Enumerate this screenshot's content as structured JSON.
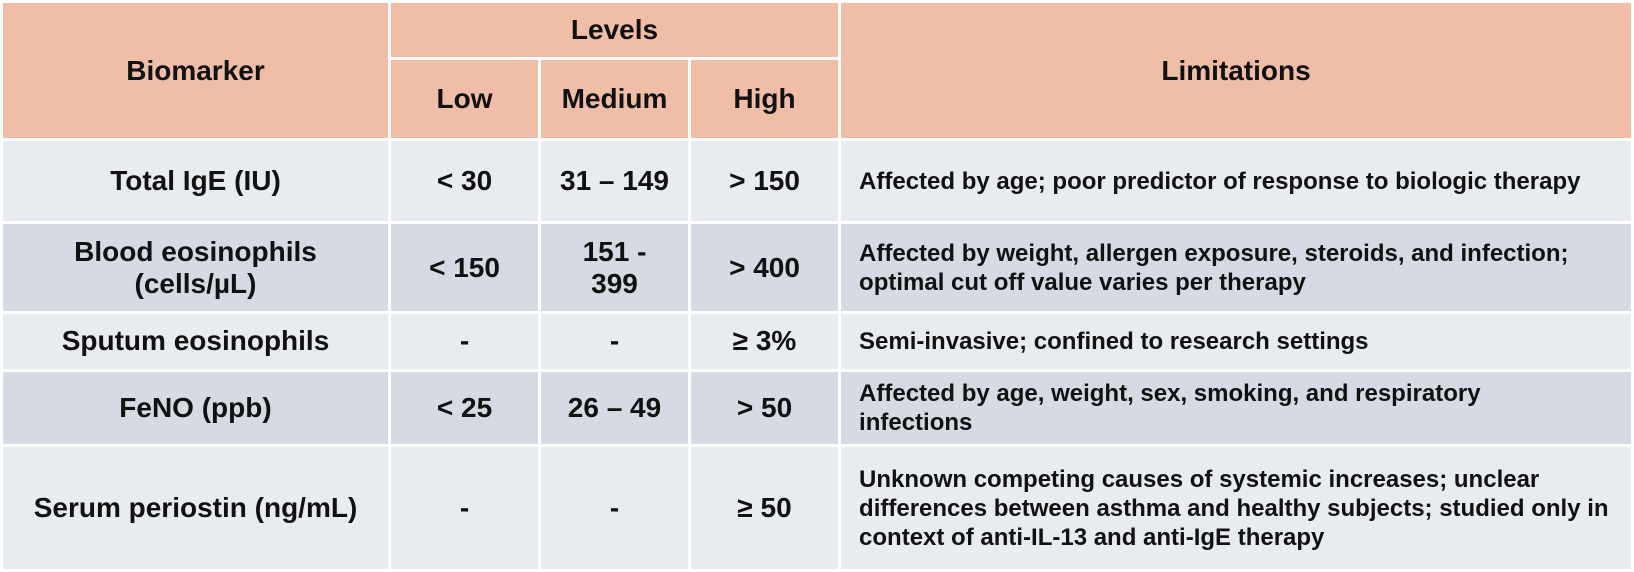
{
  "header": {
    "biomarker": "Biomarker",
    "levels": "Levels",
    "low": "Low",
    "medium": "Medium",
    "high": "High",
    "limitations": "Limitations"
  },
  "rows": [
    {
      "biomarker": "Total IgE (IU)",
      "low": "< 30",
      "medium": "31 – 149",
      "high": "> 150",
      "limitations": "Affected by age; poor predictor of response to biologic therapy"
    },
    {
      "biomarker": "Blood eosinophils (cells/µL)",
      "low": "< 150",
      "medium": "151 - 399",
      "high": "> 400",
      "limitations": "Affected by weight, allergen exposure, steroids, and infection; optimal cut off value varies per therapy"
    },
    {
      "biomarker": "Sputum eosinophils",
      "low": "-",
      "medium": "-",
      "high": "≥ 3%",
      "limitations": "Semi-invasive; confined to research settings"
    },
    {
      "biomarker": "FeNO (ppb)",
      "low": "< 25",
      "medium": "26 – 49",
      "high": "> 50",
      "limitations": "Affected by age, weight, sex, smoking, and respiratory infections"
    },
    {
      "biomarker": "Serum periostin (ng/mL)",
      "low": "-",
      "medium": "-",
      "high": "≥ 50",
      "limitations": "Unknown competing causes of systemic increases; unclear differences between asthma and healthy subjects; studied only in context of anti-IL-13 and anti-IgE therapy"
    }
  ],
  "colors": {
    "header_bg": "#f0bea6",
    "row_light": "#e8ebef",
    "row_dark": "#d5dae3"
  }
}
